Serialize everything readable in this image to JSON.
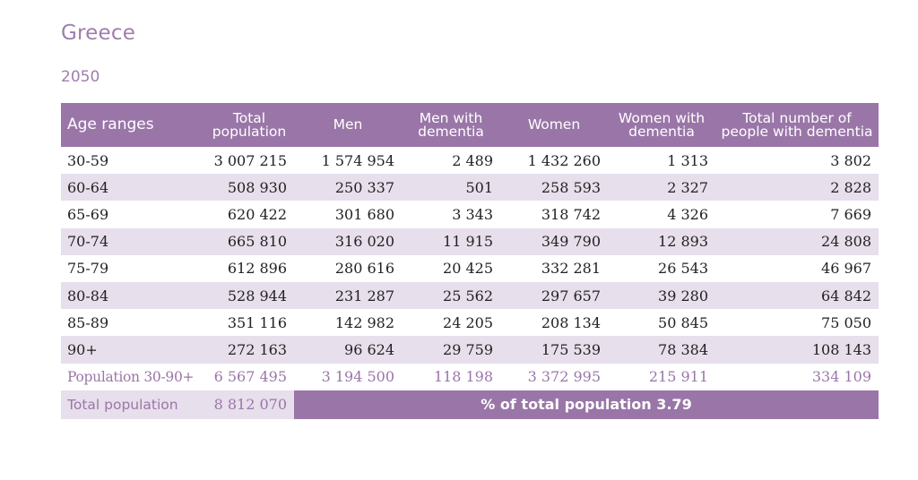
{
  "title": "Greece",
  "year": "2050",
  "headers": {
    "age": "Age ranges",
    "total_population": [
      "Total",
      "population"
    ],
    "men": "Men",
    "men_with_dementia": [
      "Men with",
      "dementia"
    ],
    "women": "Women",
    "women_with_dementia": [
      "Women with",
      "dementia"
    ],
    "total_with_dementia": [
      "Total number of",
      "people with dementia"
    ]
  },
  "rows": [
    [
      "30-59",
      "3 007 215",
      "1 574 954",
      "2 489",
      "1 432 260",
      "1 313",
      "3 802"
    ],
    [
      "60-64",
      "508 930",
      "250 337",
      "501",
      "258 593",
      "2 327",
      "2 828"
    ],
    [
      "65-69",
      "620 422",
      "301 680",
      "3 343",
      "318 742",
      "4 326",
      "7 669"
    ],
    [
      "70-74",
      "665 810",
      "316 020",
      "11 915",
      "349 790",
      "12 893",
      "24 808"
    ],
    [
      "75-79",
      "612 896",
      "280 616",
      "20 425",
      "332 281",
      "26 543",
      "46 967"
    ],
    [
      "80-84",
      "528 944",
      "231 287",
      "25 562",
      "297 657",
      "39 280",
      "64 842"
    ],
    [
      "85-89",
      "351 116",
      "142 982",
      "24 205",
      "208 134",
      "50 845",
      "75 050"
    ],
    [
      "90+",
      "272 163",
      "96 624",
      "29 759",
      "175 539",
      "78 384",
      "108 143"
    ]
  ],
  "subtotal": [
    "Population 30-90+",
    "6 567 495",
    "3 194 500",
    "118 198",
    "3 372 995",
    "215 911",
    "334 109"
  ],
  "total": {
    "label": "Total population",
    "value": "8 812 070",
    "percent_text": "% of total population 3.79"
  }
}
